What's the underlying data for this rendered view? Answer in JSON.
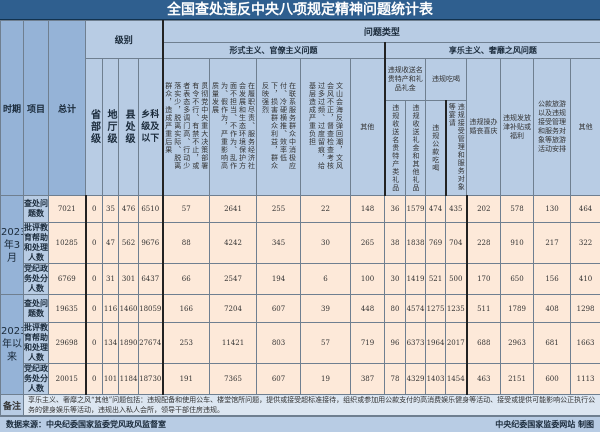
{
  "title": "全国查处违反中央八项规定精神问题统计表",
  "header": {
    "period": "时期",
    "item": "项目",
    "total": "总计",
    "level": "级别",
    "levels": [
      "省部级",
      "地厅级",
      "县处级",
      "乡科级及以下"
    ],
    "problem_type": "问题类型",
    "formalism": "形式主义、官僚主义问题",
    "hedonism": "享乐主义、奢靡之风问题",
    "formalism_items": [
      "贯彻党中央重大决策部署有令不行、有禁不止，或者表态多调门高、行动少落实少，脱离实际、脱离群众，造成严重后果",
      "在履职尽责、服务经济社会发展和生态环境保护方面不担当、不作为、乱作为、假作为，严重影响高质量发展",
      "在联系服务群众中消极应付、冷硬横推、效率低下，损害群众利益，群众反映强烈",
      "文山会海反弹回潮，文风会风不正，督查检查考核过多过频、过度留痕，给基层造成严重负担",
      "其他"
    ],
    "gifts": "违规收送名贵特产和礼品礼金",
    "gifts_sub": [
      "违规收送名贵特产类礼品",
      "违规收送礼金和其他礼品"
    ],
    "dining": "违规吃喝",
    "dining_sub": [
      "违规公款吃喝",
      "违规接受管理和服务对象等宴请"
    ],
    "weddings": "违规操办婚丧喜庆",
    "allowances": "违规发放津补贴或福利",
    "tourism": "公款旅游以及违规接受管理和服务对象等旅游活动安排",
    "other": "其他"
  },
  "periods": [
    {
      "label": "2023年3月",
      "rows": [
        {
          "item": "查处问题数",
          "values": [
            7021,
            0,
            35,
            476,
            6510,
            57,
            2641,
            255,
            22,
            148,
            36,
            1579,
            474,
            435,
            202,
            578,
            130,
            464
          ]
        },
        {
          "item": "批评教育帮助和处理人数",
          "values": [
            10285,
            0,
            47,
            562,
            9676,
            88,
            4242,
            345,
            30,
            265,
            38,
            1838,
            769,
            704,
            228,
            910,
            217,
            322
          ]
        },
        {
          "item": "党纪政务处分人数",
          "values": [
            6769,
            0,
            31,
            301,
            6437,
            66,
            2547,
            194,
            6,
            100,
            30,
            1419,
            521,
            500,
            170,
            650,
            156,
            410
          ]
        }
      ]
    },
    {
      "label": "2023年以来",
      "rows": [
        {
          "item": "查处问题数",
          "values": [
            19635,
            0,
            116,
            1460,
            18059,
            166,
            7204,
            607,
            39,
            448,
            80,
            4574,
            1275,
            1235,
            511,
            1789,
            408,
            1298
          ]
        },
        {
          "item": "批评教育帮助和处理人数",
          "values": [
            29698,
            0,
            134,
            1890,
            27674,
            253,
            11421,
            803,
            57,
            719,
            96,
            6373,
            1964,
            2017,
            688,
            2963,
            681,
            1663
          ]
        },
        {
          "item": "党纪政务处分人数",
          "values": [
            20015,
            0,
            101,
            1184,
            18730,
            191,
            7365,
            607,
            19,
            387,
            78,
            4329,
            1403,
            1454,
            463,
            2151,
            600,
            1113
          ]
        }
      ]
    }
  ],
  "note": {
    "label": "备注",
    "text": "享乐主义、奢靡之风“其他”问题包括：违规配备和使用公车、楼堂馆所问题，提供或接受超标准接待，组织或参加用公款支付的高消费娱乐健身等活动、接受或提供可能影响公正执行公务的健身娱乐等活动，违规出入私人会所，领导干部住房违规。"
  },
  "footer": {
    "source": "数据来源：中央纪委国家监委党风政风监督室",
    "credit": "中央纪委国家监委网站 制图"
  }
}
